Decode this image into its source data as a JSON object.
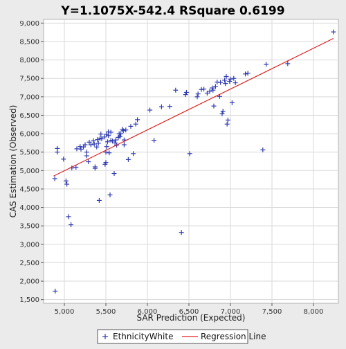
{
  "chart_data": {
    "type": "scatter",
    "title": "Y=1.1075X-542.4    RSquare 0.6199",
    "xlabel": "SAR Prediction (Expected)",
    "ylabel": "CAS Estimation (Observed)",
    "xlim": [
      4750,
      8300
    ],
    "ylim": [
      1400,
      9100
    ],
    "x_ticks": [
      5000,
      5500,
      6000,
      6500,
      7000,
      7500,
      8000
    ],
    "x_tick_labels": [
      "5,000",
      "5,500",
      "6,000",
      "6,500",
      "7,000",
      "7,500",
      "8,000"
    ],
    "y_ticks": [
      1500,
      2000,
      2500,
      3000,
      3500,
      4000,
      4500,
      5000,
      5500,
      6000,
      6500,
      7000,
      7500,
      8000,
      8500,
      9000
    ],
    "y_tick_labels": [
      "1,500",
      "2,000",
      "2,500",
      "3,000",
      "3,500",
      "4,000",
      "4,500",
      "5,000",
      "5,500",
      "6,000",
      "6,500",
      "7,000",
      "7,500",
      "8,000",
      "8,500",
      "9,000"
    ],
    "grid": true,
    "legend_position": "bottom",
    "series": [
      {
        "name": "EthnicityWhite",
        "marker": "plus",
        "color": "#2e3bb0",
        "points": [
          [
            4890,
            1730
          ],
          [
            4885,
            4780
          ],
          [
            4915,
            5500
          ],
          [
            4915,
            5600
          ],
          [
            4990,
            5310
          ],
          [
            5020,
            4720
          ],
          [
            5030,
            4630
          ],
          [
            5050,
            3750
          ],
          [
            5080,
            3530
          ],
          [
            5090,
            5070
          ],
          [
            5140,
            5090
          ],
          [
            5150,
            5590
          ],
          [
            5190,
            5650
          ],
          [
            5200,
            5580
          ],
          [
            5230,
            5640
          ],
          [
            5250,
            5700
          ],
          [
            5270,
            5500
          ],
          [
            5270,
            5400
          ],
          [
            5290,
            5240
          ],
          [
            5300,
            5770
          ],
          [
            5320,
            5700
          ],
          [
            5350,
            5810
          ],
          [
            5360,
            5720
          ],
          [
            5370,
            5060
          ],
          [
            5370,
            5100
          ],
          [
            5390,
            5640
          ],
          [
            5400,
            5840
          ],
          [
            5410,
            5740
          ],
          [
            5420,
            4190
          ],
          [
            5430,
            5880
          ],
          [
            5440,
            5990
          ],
          [
            5450,
            5860
          ],
          [
            5480,
            5910
          ],
          [
            5490,
            5170
          ],
          [
            5500,
            5220
          ],
          [
            5500,
            5500
          ],
          [
            5510,
            5650
          ],
          [
            5510,
            5980
          ],
          [
            5520,
            5780
          ],
          [
            5530,
            6050
          ],
          [
            5530,
            5950
          ],
          [
            5540,
            5480
          ],
          [
            5550,
            4340
          ],
          [
            5560,
            5820
          ],
          [
            5560,
            6040
          ],
          [
            5580,
            5800
          ],
          [
            5600,
            4920
          ],
          [
            5610,
            5750
          ],
          [
            5620,
            5830
          ],
          [
            5630,
            5690
          ],
          [
            5650,
            5900
          ],
          [
            5660,
            6000
          ],
          [
            5670,
            5920
          ],
          [
            5680,
            6000
          ],
          [
            5700,
            6120
          ],
          [
            5710,
            6080
          ],
          [
            5720,
            5830
          ],
          [
            5720,
            5700
          ],
          [
            5740,
            6100
          ],
          [
            5770,
            5300
          ],
          [
            5800,
            6200
          ],
          [
            5830,
            5460
          ],
          [
            5860,
            6260
          ],
          [
            5880,
            6380
          ],
          [
            6030,
            6640
          ],
          [
            6080,
            5820
          ],
          [
            6170,
            6730
          ],
          [
            6270,
            6740
          ],
          [
            6340,
            7180
          ],
          [
            6410,
            3320
          ],
          [
            6460,
            7060
          ],
          [
            6470,
            7120
          ],
          [
            6510,
            5460
          ],
          [
            6600,
            7000
          ],
          [
            6610,
            7080
          ],
          [
            6650,
            7200
          ],
          [
            6680,
            7210
          ],
          [
            6720,
            7100
          ],
          [
            6750,
            7150
          ],
          [
            6780,
            7240
          ],
          [
            6790,
            7180
          ],
          [
            6800,
            6750
          ],
          [
            6820,
            7280
          ],
          [
            6840,
            7400
          ],
          [
            6870,
            7010
          ],
          [
            6880,
            7390
          ],
          [
            6900,
            6540
          ],
          [
            6910,
            6610
          ],
          [
            6930,
            7450
          ],
          [
            6940,
            7360
          ],
          [
            6950,
            7550
          ],
          [
            6960,
            6260
          ],
          [
            6970,
            6370
          ],
          [
            6990,
            7420
          ],
          [
            7000,
            7480
          ],
          [
            7020,
            6840
          ],
          [
            7040,
            7500
          ],
          [
            7060,
            7380
          ],
          [
            7180,
            7620
          ],
          [
            7210,
            7640
          ],
          [
            7390,
            5560
          ],
          [
            7430,
            7880
          ],
          [
            7690,
            7900
          ],
          [
            8240,
            8760
          ]
        ]
      },
      {
        "name": "Regression Line",
        "type": "line",
        "color": "#e02020",
        "slope": 1.1075,
        "intercept": -542.4,
        "x_range": [
          4870,
          8240
        ]
      }
    ]
  }
}
